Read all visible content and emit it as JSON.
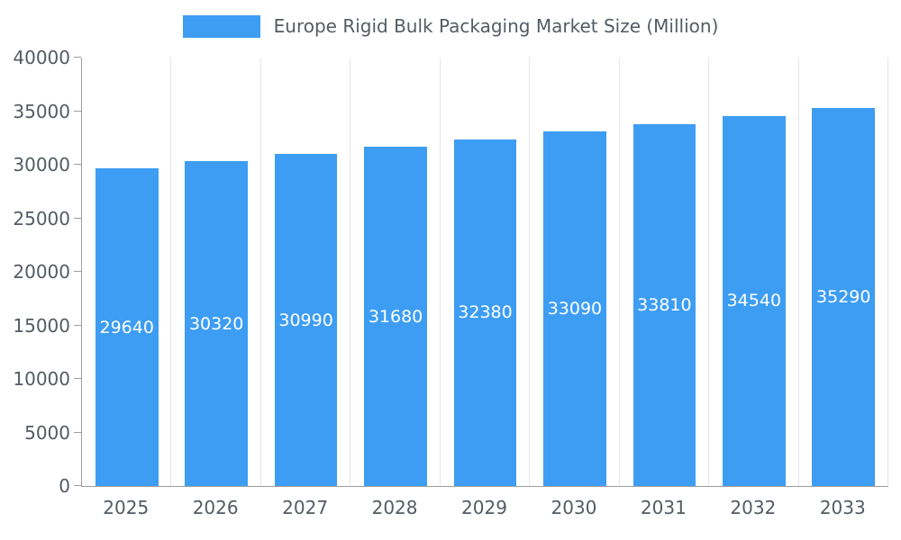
{
  "legend": {
    "label": "Europe Rigid Bulk Packaging Market Size (Million)"
  },
  "colors": {
    "bar": "#3d9df3",
    "bar_label": "#ffffff",
    "axis_text": "#545b63",
    "axis_line": "#9e9e9e",
    "gridline": "#e6e6e6",
    "background": "#ffffff"
  },
  "chart_data": {
    "type": "bar",
    "title": "Europe Rigid Bulk Packaging Market Size (Million)",
    "categories": [
      "2025",
      "2026",
      "2027",
      "2028",
      "2029",
      "2030",
      "2031",
      "2032",
      "2033"
    ],
    "values": [
      29640,
      30320,
      30990,
      31680,
      32380,
      33090,
      33810,
      34540,
      35290
    ],
    "xlabel": "",
    "ylabel": "",
    "ylim": [
      0,
      40000
    ],
    "yticks": [
      0,
      5000,
      10000,
      15000,
      20000,
      25000,
      30000,
      35000,
      40000
    ],
    "grid": "vertical",
    "legend_position": "top",
    "value_labels": "inside-center"
  }
}
